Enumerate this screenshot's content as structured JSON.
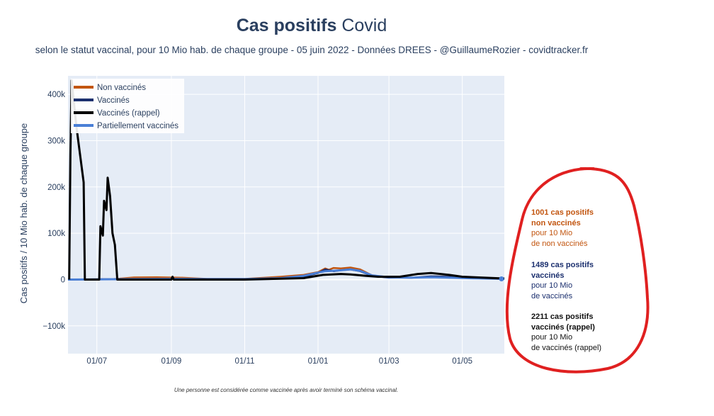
{
  "header": {
    "title_bold": "Cas positifs",
    "title_rest": " Covid",
    "subtitle": "selon le statut vaccinal, pour 10 Mio hab. de chaque groupe - 05 juin 2022 - Données DREES - @GuillaumeRozier - covidtracker.fr"
  },
  "footnote": "Une personne est considérée comme vaccinée après avoir terminé son schéma vaccinal.",
  "annotations": [
    {
      "id": "nv",
      "l1": "1001 cas positifs",
      "l2": "non vaccinés",
      "l3": "pour 10 Mio",
      "l4": "de non vaccinés"
    },
    {
      "id": "v",
      "l1": "1489 cas positifs",
      "l2": "vaccinés",
      "l3": "pour 10 Mio",
      "l4": "de vaccinés"
    },
    {
      "id": "r",
      "l1": "2211 cas positifs",
      "l2": "vaccinés (rappel)",
      "l3": "pour 10 Mio",
      "l4": "de vaccinés (rappel)"
    }
  ],
  "chart_data": {
    "type": "line",
    "title": "Cas positifs Covid",
    "ylabel": "Cas positifs / 10 Mio hab. de chaque groupe",
    "xlabel": "",
    "xlim": [
      "2021-06-07",
      "2022-06-05"
    ],
    "ylim": [
      -160000,
      440000
    ],
    "yticks": [
      -100000,
      0,
      100000,
      200000,
      300000,
      400000
    ],
    "ytick_labels": [
      "−100k",
      "0",
      "100k",
      "200k",
      "300k",
      "400k"
    ],
    "xticks": [
      "2021-07-01",
      "2021-09-01",
      "2021-11-01",
      "2022-01-01",
      "2022-03-01",
      "2022-05-01"
    ],
    "xtick_labels": [
      "01/07",
      "01/09",
      "01/11",
      "01/01",
      "01/03",
      "01/05"
    ],
    "grid": true,
    "legend": "top-left",
    "series": [
      {
        "name": "Non vaccinés",
        "color": "#c2550f",
        "x": [
          "2021-06-07",
          "2021-07-15",
          "2021-08-01",
          "2021-08-20",
          "2021-09-10",
          "2021-10-01",
          "2021-11-01",
          "2021-12-01",
          "2021-12-20",
          "2022-01-01",
          "2022-01-07",
          "2022-01-10",
          "2022-01-14",
          "2022-01-20",
          "2022-01-28",
          "2022-02-05",
          "2022-02-15",
          "2022-03-01",
          "2022-03-20",
          "2022-04-05",
          "2022-04-20",
          "2022-05-10",
          "2022-06-05"
        ],
        "y": [
          0,
          1000,
          4500,
          5000,
          4000,
          1500,
          1500,
          6000,
          10000,
          16000,
          24000,
          21000,
          25000,
          24000,
          26000,
          22000,
          9000,
          5000,
          4000,
          6000,
          5000,
          3000,
          1001
        ]
      },
      {
        "name": "Vaccinés",
        "color": "#1b2f6e",
        "x": [
          "2021-06-07",
          "2021-08-01",
          "2021-09-10",
          "2021-10-01",
          "2021-11-01",
          "2021-12-01",
          "2021-12-20",
          "2022-01-01",
          "2022-01-07",
          "2022-01-14",
          "2022-01-20",
          "2022-01-28",
          "2022-02-05",
          "2022-02-15",
          "2022-03-01",
          "2022-03-20",
          "2022-04-05",
          "2022-04-20",
          "2022-05-10",
          "2022-06-05"
        ],
        "y": [
          0,
          1000,
          1500,
          1000,
          1000,
          2000,
          6000,
          14000,
          22000,
          18000,
          20000,
          22000,
          18000,
          8000,
          4000,
          4000,
          7000,
          6000,
          3000,
          1489
        ]
      },
      {
        "name": "Vaccinés (rappel)",
        "color": "#000000",
        "x": [
          "2021-06-08",
          "2021-06-09",
          "2021-06-10",
          "2021-06-14",
          "2021-06-17",
          "2021-06-20",
          "2021-06-21",
          "2021-06-22",
          "2021-07-03",
          "2021-07-04",
          "2021-07-06",
          "2021-07-07",
          "2021-07-09",
          "2021-07-10",
          "2021-07-12",
          "2021-07-14",
          "2021-07-16",
          "2021-07-18",
          "2021-07-20",
          "2021-09-01",
          "2021-09-02",
          "2021-09-03",
          "2021-09-10",
          "2021-11-01",
          "2021-12-20",
          "2022-01-05",
          "2022-01-20",
          "2022-01-28",
          "2022-02-10",
          "2022-02-20",
          "2022-03-10",
          "2022-03-25",
          "2022-04-05",
          "2022-04-20",
          "2022-05-01",
          "2022-05-20",
          "2022-06-05"
        ],
        "y": [
          0,
          270000,
          430000,
          330000,
          270000,
          210000,
          0,
          0,
          0,
          115000,
          95000,
          170000,
          150000,
          220000,
          180000,
          100000,
          75000,
          0,
          0,
          0,
          6000,
          0,
          0,
          0,
          3000,
          10000,
          12000,
          11000,
          8000,
          6000,
          6000,
          12000,
          14000,
          10000,
          6000,
          4000,
          2211
        ]
      },
      {
        "name": "Partiellement vaccinés",
        "color": "#4a7fd6",
        "x": [
          "2021-06-07",
          "2021-08-01",
          "2021-09-10",
          "2021-10-01",
          "2021-11-01",
          "2021-12-01",
          "2021-12-20",
          "2022-01-01",
          "2022-01-07",
          "2022-01-14",
          "2022-01-20",
          "2022-01-28",
          "2022-02-05",
          "2022-02-15",
          "2022-03-01",
          "2022-03-20",
          "2022-04-05",
          "2022-04-20",
          "2022-05-10",
          "2022-06-05"
        ],
        "y": [
          0,
          1000,
          1500,
          1000,
          1000,
          3000,
          8000,
          15000,
          18000,
          19000,
          20000,
          22000,
          19000,
          9000,
          5000,
          4000,
          5000,
          4000,
          2500,
          1500
        ]
      }
    ]
  }
}
